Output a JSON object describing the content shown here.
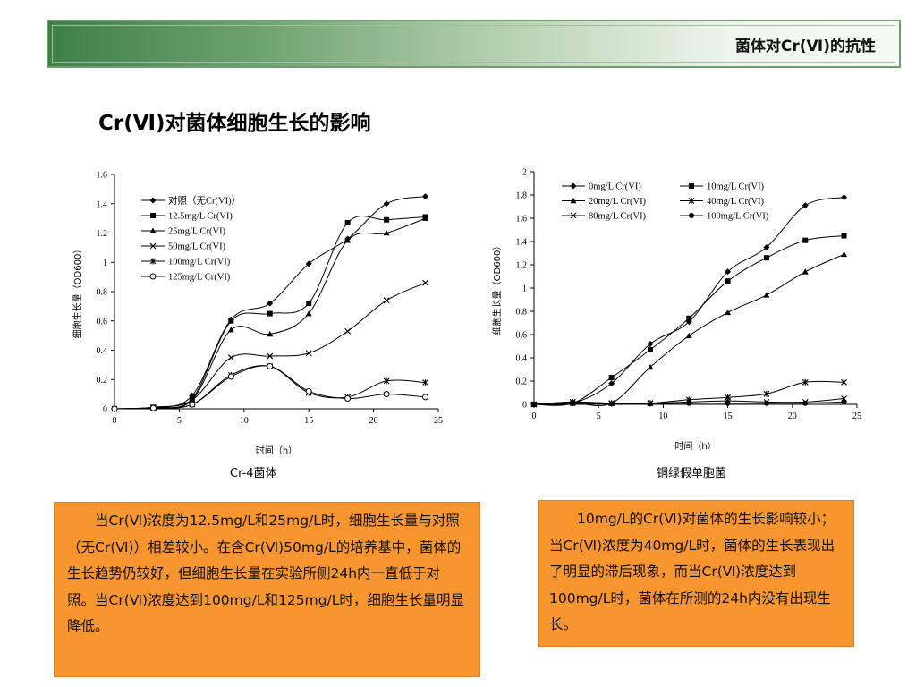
{
  "banner": {
    "title": "菌体对Cr(Ⅵ)的抗性"
  },
  "slide": {
    "title": "Cr(Ⅵ)对菌体细胞生长的影响"
  },
  "chart_data": [
    {
      "type": "line",
      "caption": "Cr-4菌体",
      "xlabel": "时间（h）",
      "ylabel": "细胞生长量（OD600）",
      "xlim": [
        0,
        25
      ],
      "ylim": [
        0,
        1.6
      ],
      "xticks": [
        0,
        5,
        10,
        15,
        20,
        25
      ],
      "yticks": [
        0,
        0.2,
        0.4,
        0.6,
        0.8,
        1,
        1.2,
        1.4,
        1.6
      ],
      "grid": false,
      "legend_position": "top-left",
      "series": [
        {
          "name": "对照（无Cr(VI)）",
          "marker": "diamond",
          "x": [
            0,
            3,
            6,
            9,
            12,
            15,
            18,
            21,
            24
          ],
          "y": [
            0,
            0.01,
            0.09,
            0.61,
            0.72,
            0.99,
            1.16,
            1.4,
            1.45
          ]
        },
        {
          "name": "12.5mg/L Cr(VI)",
          "marker": "square",
          "x": [
            0,
            3,
            6,
            9,
            12,
            15,
            18,
            21,
            24
          ],
          "y": [
            0,
            0.01,
            0.07,
            0.6,
            0.65,
            0.72,
            1.27,
            1.29,
            1.31
          ]
        },
        {
          "name": "25mg/L Cr(VI)",
          "marker": "triangle",
          "x": [
            0,
            3,
            6,
            9,
            12,
            15,
            18,
            21,
            24
          ],
          "y": [
            0,
            0.01,
            0.06,
            0.54,
            0.51,
            0.65,
            1.15,
            1.2,
            1.3
          ]
        },
        {
          "name": "50mg/L Cr(VI)",
          "marker": "x",
          "x": [
            0,
            3,
            6,
            9,
            12,
            15,
            18,
            21,
            24
          ],
          "y": [
            0,
            0.01,
            0.06,
            0.35,
            0.36,
            0.38,
            0.53,
            0.74,
            0.86
          ]
        },
        {
          "name": "100mg/L Cr(VI)",
          "marker": "star",
          "x": [
            0,
            3,
            6,
            9,
            12,
            15,
            18,
            21,
            24
          ],
          "y": [
            0,
            0.005,
            0.03,
            0.23,
            0.29,
            0.11,
            0.08,
            0.19,
            0.18
          ]
        },
        {
          "name": "125mg/L Cr(VI)",
          "marker": "circle-open",
          "x": [
            0,
            3,
            6,
            9,
            12,
            15,
            18,
            21,
            24
          ],
          "y": [
            0,
            0.005,
            0.03,
            0.22,
            0.29,
            0.12,
            0.07,
            0.1,
            0.08
          ]
        }
      ]
    },
    {
      "type": "line",
      "caption": "铜绿假单胞菌",
      "xlabel": "时间（h）",
      "ylabel": "细胞生长量（OD600）",
      "xlim": [
        0,
        25
      ],
      "ylim": [
        0,
        2
      ],
      "xticks": [
        0,
        5,
        10,
        15,
        20,
        25
      ],
      "yticks": [
        0,
        0.2,
        0.4,
        0.6,
        0.8,
        1,
        1.2,
        1.4,
        1.6,
        1.8,
        2
      ],
      "grid": false,
      "legend_position": "top",
      "series": [
        {
          "name": "0mg/L Cr(VI)",
          "marker": "diamond",
          "x": [
            0,
            3,
            6,
            9,
            12,
            15,
            18,
            21,
            24
          ],
          "y": [
            0,
            0.01,
            0.18,
            0.52,
            0.71,
            1.14,
            1.35,
            1.71,
            1.78
          ]
        },
        {
          "name": "10mg/L Cr(VI)",
          "marker": "square",
          "x": [
            0,
            3,
            6,
            9,
            12,
            15,
            18,
            21,
            24
          ],
          "y": [
            0,
            0.01,
            0.23,
            0.47,
            0.74,
            1.06,
            1.26,
            1.41,
            1.45
          ]
        },
        {
          "name": "20mg/L Cr(VI)",
          "marker": "triangle",
          "x": [
            0,
            3,
            6,
            9,
            12,
            15,
            18,
            21,
            24
          ],
          "y": [
            0,
            0.01,
            0.01,
            0.32,
            0.59,
            0.79,
            0.94,
            1.14,
            1.29
          ]
        },
        {
          "name": "40mg/L Cr(VI)",
          "marker": "star",
          "x": [
            0,
            3,
            6,
            9,
            12,
            15,
            18,
            21,
            24
          ],
          "y": [
            0,
            0.02,
            0.01,
            0.01,
            0.04,
            0.06,
            0.09,
            0.19,
            0.19
          ]
        },
        {
          "name": "80mg/L Cr(VI)",
          "marker": "x",
          "x": [
            0,
            3,
            6,
            9,
            12,
            15,
            18,
            21,
            24
          ],
          "y": [
            0,
            0.02,
            0.01,
            0.01,
            0.02,
            0.03,
            0.02,
            0.02,
            0.05
          ]
        },
        {
          "name": "100mg/L Cr(VI)",
          "marker": "circle",
          "x": [
            0,
            3,
            6,
            9,
            12,
            15,
            18,
            21,
            24
          ],
          "y": [
            0,
            0.01,
            0.005,
            0.005,
            0.01,
            0.01,
            0.01,
            0.01,
            0.02
          ]
        }
      ]
    }
  ],
  "textboxes": {
    "left": "当Cr(Ⅵ)浓度为12.5mg/L和25mg/L时，细胞生长量与对照（无Cr(Ⅵ)）相差较小。在含Cr(Ⅵ)50mg/L的培养基中，菌体的生长趋势仍较好，但细胞生长量在实验所侧24h内一直低于对照。当Cr(Ⅵ)浓度达到100mg/L和125mg/L时，细胞生长量明显降低。",
    "right": "10mg/L的Cr(Ⅵ)对菌体的生长影响较小；当Cr(Ⅵ)浓度为40mg/L时，菌体的生长表现出了明显的滞后现象，而当Cr(Ⅵ)浓度达到100mg/L时，菌体在所测的24h内没有出现生长。"
  }
}
